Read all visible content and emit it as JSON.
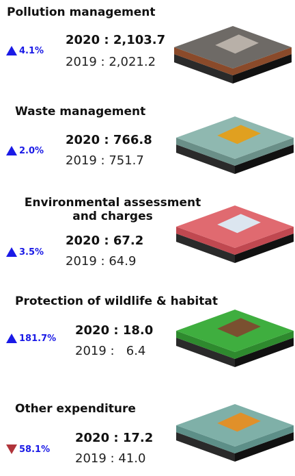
{
  "items": [
    {
      "title": "Pollution management",
      "change": "4.1%",
      "current": "2020 : 2,103.7",
      "previous": "2019 : 2,021.2"
    },
    {
      "title": "Waste management",
      "change": "2.0%",
      "current": "2020 : 766.8",
      "previous": "2019 : 751.7"
    },
    {
      "title": "Environmental assessment\nand charges",
      "change": "3.5%",
      "current": "2020 : 67.2",
      "previous": "2019 : 64.9"
    },
    {
      "title": "Protection of wildlife & habitat",
      "change": "181.7%",
      "current": "2020 : 18.0",
      "previous": "2019 :   6.4"
    },
    {
      "title": "Other expenditure",
      "change": "58.1%",
      "current": "2020 : 17.2",
      "previous": "2019 : 41.0"
    }
  ]
}
